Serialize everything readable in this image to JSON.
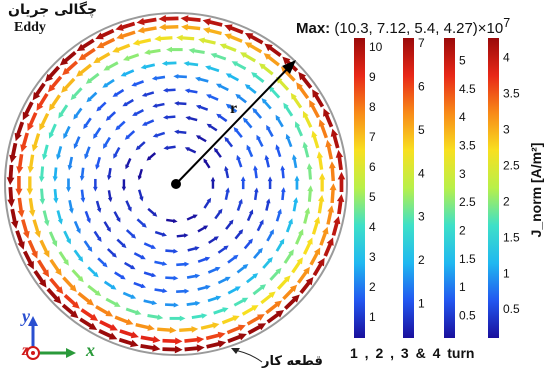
{
  "titles": {
    "persian": "چگالی جریان",
    "english": "Eddy"
  },
  "max_label": {
    "prefix": "Max:",
    "values": "(10.3,  7.12,  5.4,   4.27)×10",
    "exponent": "7"
  },
  "radius_label": "r",
  "workpiece_label": "قطعه کار",
  "unit_label": "J_norm [A/m²]",
  "footer": "1 , 2 , 3 & 4 turn",
  "axes": {
    "x": "x",
    "y": "y",
    "z": "z"
  },
  "chart_data": {
    "type": "vector-field",
    "rotation": "counter-clockwise",
    "colorbars": [
      {
        "turn": "1",
        "ticks": [
          "10",
          "9",
          "8",
          "7",
          "6",
          "5",
          "4",
          "3",
          "2",
          "1"
        ],
        "values": [
          10,
          9,
          8,
          7,
          6,
          5,
          4,
          3,
          2,
          1
        ],
        "max": 10.3,
        "min": 0.3
      },
      {
        "turn": "2",
        "ticks": [
          "7",
          "6",
          "5",
          "4",
          "3",
          "2",
          "1"
        ],
        "values": [
          7,
          6,
          5,
          4,
          3,
          2,
          1
        ],
        "max": 7.12,
        "min": 0.2
      },
      {
        "turn": "3",
        "ticks": [
          "5",
          "4.5",
          "4",
          "3.5",
          "3",
          "2.5",
          "2",
          "1.5",
          "1",
          "0.5"
        ],
        "values": [
          5,
          4.5,
          4,
          3.5,
          3,
          2.5,
          2,
          1.5,
          1,
          0.5
        ],
        "max": 5.4,
        "min": 0.1
      },
      {
        "turn": "4",
        "ticks": [
          "4",
          "3.5",
          "3",
          "2.5",
          "2",
          "1.5",
          "1",
          "0.5"
        ],
        "values": [
          4,
          3.5,
          3,
          2.5,
          2,
          1.5,
          1,
          0.5
        ],
        "max": 4.27,
        "min": 0.1
      }
    ],
    "colormap": [
      "#1a0f9c",
      "#2257f0",
      "#20b8f0",
      "#3ee0c8",
      "#b8f04a",
      "#f8e020",
      "#f88a18",
      "#e82818",
      "#9a0a0a"
    ]
  }
}
